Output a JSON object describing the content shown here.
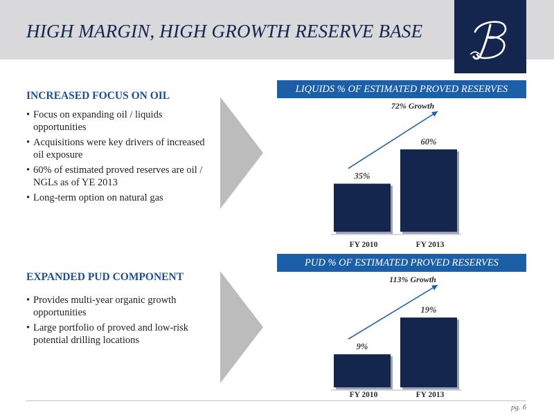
{
  "title": "HIGH MARGIN, HIGH GROWTH RESERVE BASE",
  "logo": {
    "letter": "B",
    "bg_color": "#14254e"
  },
  "colors": {
    "title": "#14254e",
    "heading": "#1e4f93",
    "chart_header": "#1b5fa8",
    "bar": "#14254e",
    "chevron": "#bcbcbc"
  },
  "sections": [
    {
      "heading": "INCREASED FOCUS ON OIL",
      "bullets": [
        "Focus on expanding oil / liquids opportunities",
        "Acquisitions were key drivers of increased oil exposure",
        "60% of estimated proved reserves are oil / NGLs as of YE 2013",
        "Long-term option on natural gas"
      ]
    },
    {
      "heading": "EXPANDED PUD COMPONENT",
      "bullets": [
        "Provides multi-year organic growth opportunities",
        "Large portfolio of proved and low-risk potential drilling locations"
      ]
    }
  ],
  "chart_data": [
    {
      "type": "bar",
      "title": "LIQUIDS % OF ESTIMATED PROVED RESERVES",
      "categories": [
        "FY 2010",
        "FY 2013"
      ],
      "values": [
        35,
        60
      ],
      "value_labels": [
        "35%",
        "60%"
      ],
      "growth_label": "72% Growth",
      "ylim": [
        0,
        75
      ]
    },
    {
      "type": "bar",
      "title": "PUD % OF ESTIMATED PROVED RESERVES",
      "categories": [
        "FY 2010",
        "FY 2013"
      ],
      "values": [
        9,
        19
      ],
      "value_labels": [
        "9%",
        "19%"
      ],
      "growth_label": "113% Growth",
      "ylim": [
        0,
        23.75
      ]
    }
  ],
  "page_number": "pg. 6"
}
